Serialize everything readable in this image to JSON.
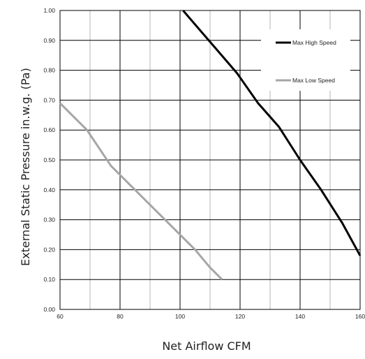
{
  "chart_data": {
    "type": "line",
    "xlabel": "Net Airflow CFM",
    "ylabel": "External Static Pressure in.w.g. (Pa)",
    "xlim": [
      60,
      160
    ],
    "ylim": [
      0,
      1.0
    ],
    "x_ticks": [
      "60",
      "80",
      "100",
      "120",
      "140",
      "160"
    ],
    "x_minor_ticks": [
      70,
      90,
      110,
      130,
      150
    ],
    "y_ticks": [
      "0.00",
      "0.10",
      "0.20",
      "0.30",
      "0.40",
      "0.50",
      "0.60",
      "0.70",
      "0.80",
      "0.90",
      "1.00"
    ],
    "grid": true,
    "legend_position": "top-right",
    "series": [
      {
        "name": "Max High Speed",
        "color": "#000000",
        "points": [
          [
            101,
            1.0
          ],
          [
            107,
            0.93
          ],
          [
            113,
            0.86
          ],
          [
            119,
            0.79
          ],
          [
            126,
            0.69
          ],
          [
            133,
            0.61
          ],
          [
            140,
            0.5
          ],
          [
            147,
            0.4
          ],
          [
            154,
            0.29
          ],
          [
            160,
            0.18
          ]
        ]
      },
      {
        "name": "Max Low Speed",
        "color": "#a6a6a6",
        "points": [
          [
            60,
            0.69
          ],
          [
            69,
            0.6
          ],
          [
            77,
            0.48
          ],
          [
            87,
            0.38
          ],
          [
            97,
            0.28
          ],
          [
            105,
            0.2
          ],
          [
            110,
            0.14
          ],
          [
            114,
            0.1
          ]
        ]
      }
    ]
  }
}
